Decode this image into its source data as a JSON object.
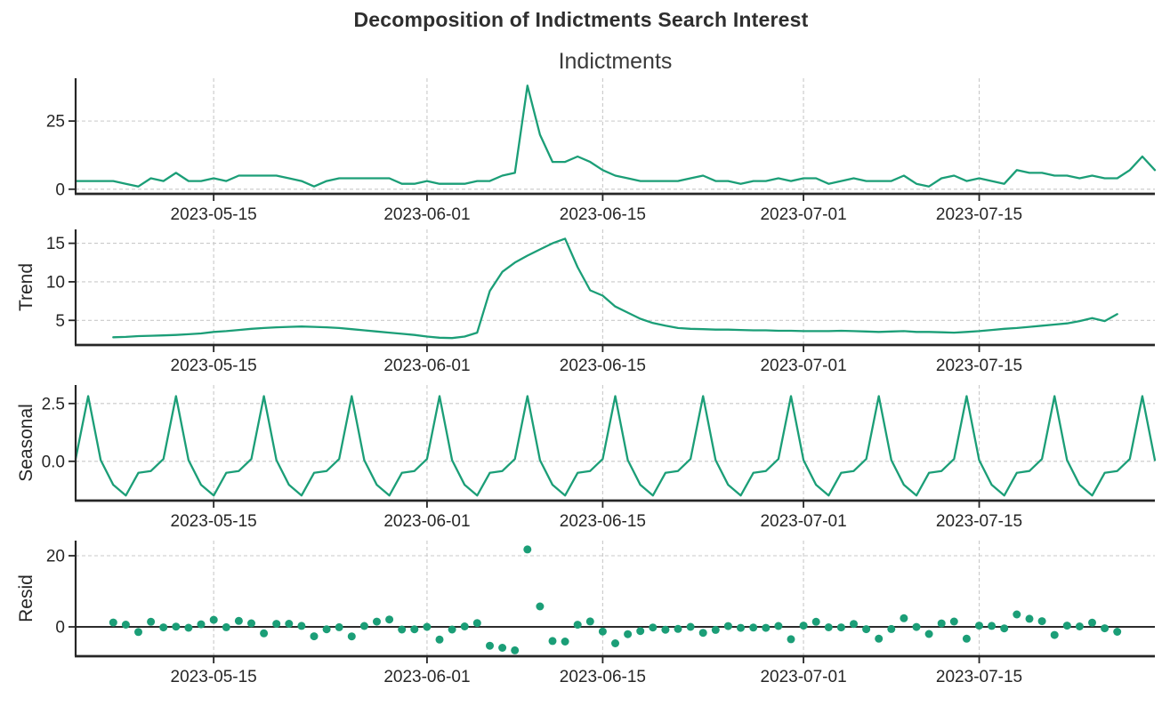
{
  "chart_data": {
    "type": "line",
    "suptitle": "Decomposition of Indictments Search Interest",
    "line_color": "#1b9e77",
    "grid": true,
    "x": [
      "2023-05-04",
      "2023-05-05",
      "2023-05-06",
      "2023-05-07",
      "2023-05-08",
      "2023-05-09",
      "2023-05-10",
      "2023-05-11",
      "2023-05-12",
      "2023-05-13",
      "2023-05-14",
      "2023-05-15",
      "2023-05-16",
      "2023-05-17",
      "2023-05-18",
      "2023-05-19",
      "2023-05-20",
      "2023-05-21",
      "2023-05-22",
      "2023-05-23",
      "2023-05-24",
      "2023-05-25",
      "2023-05-26",
      "2023-05-27",
      "2023-05-28",
      "2023-05-29",
      "2023-05-30",
      "2023-05-31",
      "2023-06-01",
      "2023-06-02",
      "2023-06-03",
      "2023-06-04",
      "2023-06-05",
      "2023-06-06",
      "2023-06-07",
      "2023-06-08",
      "2023-06-09",
      "2023-06-10",
      "2023-06-11",
      "2023-06-12",
      "2023-06-13",
      "2023-06-14",
      "2023-06-15",
      "2023-06-16",
      "2023-06-17",
      "2023-06-18",
      "2023-06-19",
      "2023-06-20",
      "2023-06-21",
      "2023-06-22",
      "2023-06-23",
      "2023-06-24",
      "2023-06-25",
      "2023-06-26",
      "2023-06-27",
      "2023-06-28",
      "2023-06-29",
      "2023-06-30",
      "2023-07-01",
      "2023-07-02",
      "2023-07-03",
      "2023-07-04",
      "2023-07-05",
      "2023-07-06",
      "2023-07-07",
      "2023-07-08",
      "2023-07-09",
      "2023-07-10",
      "2023-07-11",
      "2023-07-12",
      "2023-07-13",
      "2023-07-14",
      "2023-07-15",
      "2023-07-16",
      "2023-07-17",
      "2023-07-18",
      "2023-07-19",
      "2023-07-20",
      "2023-07-21",
      "2023-07-22",
      "2023-07-23",
      "2023-07-24",
      "2023-07-25",
      "2023-07-26",
      "2023-07-27",
      "2023-07-28",
      "2023-07-29"
    ],
    "x_ticks": [
      {
        "i": 11,
        "label": "2023-05-15"
      },
      {
        "i": 28,
        "label": "2023-06-01"
      },
      {
        "i": 42,
        "label": "2023-06-15"
      },
      {
        "i": 58,
        "label": "2023-07-01"
      },
      {
        "i": 72,
        "label": "2023-07-15"
      }
    ],
    "panels": [
      {
        "name": "observed",
        "title": "Indictments",
        "type": "line",
        "ylim": [
          -1.7,
          40.7
        ],
        "yticks": [
          {
            "v": 0,
            "label": "0"
          },
          {
            "v": 25,
            "label": "25"
          }
        ],
        "values": [
          3,
          3,
          3,
          3,
          2,
          1,
          4,
          3,
          6,
          3,
          3,
          4,
          3,
          5,
          5,
          5,
          5,
          4,
          3,
          1,
          3,
          4,
          4,
          4,
          4,
          4,
          2,
          2,
          3,
          2,
          2,
          2,
          3,
          3,
          5,
          6,
          38,
          20,
          10,
          10,
          12,
          10,
          7,
          5,
          4,
          3,
          3,
          3,
          3,
          4,
          5,
          3,
          3,
          2,
          3,
          3,
          4,
          3,
          4,
          4,
          2,
          3,
          4,
          3,
          3,
          3,
          5,
          2,
          1,
          4,
          5,
          3,
          4,
          3,
          2,
          7,
          6,
          6,
          5,
          5,
          4,
          5,
          4,
          4,
          7,
          12,
          7
        ]
      },
      {
        "name": "trend",
        "ylabel": "Trend",
        "type": "line",
        "ylim": [
          1.8,
          16.8
        ],
        "yticks": [
          {
            "v": 5,
            "label": "5"
          },
          {
            "v": 10,
            "label": "10"
          },
          {
            "v": 15,
            "label": "15"
          }
        ],
        "values": [
          null,
          null,
          null,
          2.8,
          2.85,
          2.95,
          3.0,
          3.05,
          3.1,
          3.2,
          3.3,
          3.5,
          3.6,
          3.75,
          3.9,
          4.0,
          4.1,
          4.15,
          4.2,
          4.15,
          4.1,
          4.0,
          3.85,
          3.7,
          3.55,
          3.4,
          3.25,
          3.1,
          2.9,
          2.75,
          2.7,
          2.9,
          3.4,
          8.8,
          11.3,
          12.5,
          13.4,
          14.2,
          15.0,
          15.6,
          11.9,
          8.9,
          8.2,
          6.8,
          6.0,
          5.2,
          4.65,
          4.3,
          4.0,
          3.9,
          3.85,
          3.8,
          3.8,
          3.75,
          3.7,
          3.7,
          3.65,
          3.65,
          3.6,
          3.6,
          3.6,
          3.65,
          3.6,
          3.55,
          3.5,
          3.55,
          3.6,
          3.5,
          3.5,
          3.45,
          3.4,
          3.5,
          3.6,
          3.75,
          3.9,
          4.0,
          4.15,
          4.3,
          4.45,
          4.6,
          4.9,
          5.3,
          4.9,
          5.8,
          null,
          null,
          null
        ]
      },
      {
        "name": "seasonal",
        "ylabel": "Seasonal",
        "type": "line",
        "ylim": [
          -1.7,
          3.3
        ],
        "yticks": [
          {
            "v": 0,
            "label": "0.0"
          },
          {
            "v": 2.5,
            "label": "2.5"
          }
        ],
        "values": [
          0.1,
          2.82,
          0.05,
          -1.02,
          -1.48,
          -0.5,
          -0.42,
          0.1,
          2.82,
          0.05,
          -1.02,
          -1.48,
          -0.5,
          -0.42,
          0.1,
          2.82,
          0.05,
          -1.02,
          -1.48,
          -0.5,
          -0.42,
          0.1,
          2.82,
          0.05,
          -1.02,
          -1.48,
          -0.5,
          -0.42,
          0.1,
          2.82,
          0.05,
          -1.02,
          -1.48,
          -0.5,
          -0.42,
          0.1,
          2.82,
          0.05,
          -1.02,
          -1.48,
          -0.5,
          -0.42,
          0.1,
          2.82,
          0.05,
          -1.02,
          -1.48,
          -0.5,
          -0.42,
          0.1,
          2.82,
          0.05,
          -1.02,
          -1.48,
          -0.5,
          -0.42,
          0.1,
          2.82,
          0.05,
          -1.02,
          -1.48,
          -0.5,
          -0.42,
          0.1,
          2.82,
          0.05,
          -1.02,
          -1.48,
          -0.5,
          -0.42,
          0.1,
          2.82,
          0.05,
          -1.02,
          -1.48,
          -0.5,
          -0.42,
          0.1,
          2.82,
          0.05,
          -1.02,
          -1.48,
          -0.5,
          -0.42,
          0.1,
          2.82,
          0.05
        ]
      },
      {
        "name": "resid",
        "ylabel": "Resid",
        "type": "scatter",
        "zero_line": true,
        "ylim": [
          -8.25,
          24.25
        ],
        "yticks": [
          {
            "v": 0,
            "label": "0"
          },
          {
            "v": 20,
            "label": "20"
          }
        ],
        "values": [
          null,
          null,
          null,
          1.22,
          0.63,
          -1.45,
          1.42,
          -0.15,
          0.08,
          -0.25,
          0.72,
          1.98,
          -0.1,
          1.67,
          1.0,
          -1.82,
          0.85,
          0.87,
          0.28,
          -2.65,
          -0.68,
          -0.1,
          -2.67,
          0.25,
          1.47,
          2.08,
          -0.75,
          -0.68,
          0.0,
          -3.57,
          -0.75,
          0.12,
          1.08,
          -5.3,
          -5.88,
          -6.6,
          21.78,
          5.75,
          -3.98,
          -4.12,
          0.6,
          1.52,
          -1.3,
          -4.62,
          -2.05,
          -1.18,
          -0.17,
          -0.8,
          -0.58,
          0.0,
          -1.67,
          -0.85,
          0.22,
          -0.27,
          -0.2,
          -0.28,
          0.25,
          -3.47,
          0.35,
          1.42,
          -0.12,
          -0.15,
          0.82,
          -0.65,
          -3.32,
          -0.6,
          2.42,
          -0.02,
          -2.0,
          0.97,
          1.5,
          -3.32,
          0.35,
          0.27,
          -0.42,
          3.5,
          2.27,
          1.6,
          -2.27,
          0.35,
          0.12,
          1.18,
          -0.4,
          -1.38,
          null,
          null,
          null
        ]
      }
    ]
  }
}
